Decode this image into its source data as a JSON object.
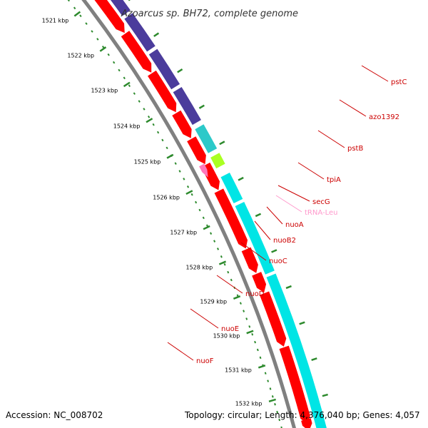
{
  "title": "Azoarcus sp. BH72, complete genome",
  "footer": {
    "accession": "Accession: NC_008702",
    "summary": "Topology: circular; Length: 4,376,040 bp; Genes: 4,057"
  },
  "kbp_labels": [
    "1521 kbp",
    "1522 kbp",
    "1523 kbp",
    "1524 kbp",
    "1525 kbp",
    "1526 kbp",
    "1527 kbp",
    "1528 kbp",
    "1529 kbp",
    "1530 kbp",
    "1531 kbp",
    "1532 kbp"
  ],
  "genes": [
    {
      "name": "pstC",
      "color": "#cc0000"
    },
    {
      "name": "azo1392",
      "color": "#cc0000"
    },
    {
      "name": "pstB",
      "color": "#cc0000"
    },
    {
      "name": "tpiA",
      "color": "#cc0000"
    },
    {
      "name": "secG",
      "color": "#cc0000"
    },
    {
      "name": "tRNA-Leu",
      "color": "#ff99cc"
    },
    {
      "name": "nuoA",
      "color": "#cc0000"
    },
    {
      "name": "nuoB2",
      "color": "#cc0000"
    },
    {
      "name": "nuoC",
      "color": "#cc0000"
    },
    {
      "name": "nuoD",
      "color": "#cc0000"
    },
    {
      "name": "nuoE",
      "color": "#cc0000"
    },
    {
      "name": "nuoF",
      "color": "#cc0000"
    }
  ],
  "colors": {
    "forward_cds": "#ff0000",
    "cog_blue": "#4b3c9c",
    "cog_cyan": "#00e5e5",
    "cog_teal": "#2cc9c9",
    "cog_lime": "#aaff22",
    "backbone": "#808080",
    "ticks_major": "#2d8a2d",
    "ticks_minor": "#2d8a2d"
  }
}
